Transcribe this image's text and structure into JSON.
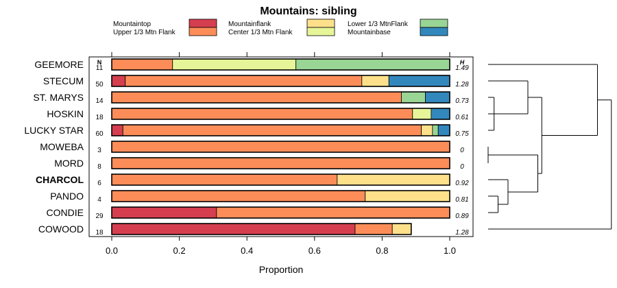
{
  "chart_data": {
    "type": "bar",
    "stacked": true,
    "orientation": "horizontal",
    "title": "Mountains: sibling",
    "xlabel": "Proportion",
    "xlim": [
      0,
      1
    ],
    "xticks": [
      "0.0",
      "0.2",
      "0.4",
      "0.6",
      "0.8",
      "1.0"
    ],
    "n_header": "N",
    "h_header": "H",
    "categories": [
      "GEEMORE",
      "STECUM",
      "ST. MARYS",
      "HOSKIN",
      "LUCKY STAR",
      "MOWEBA",
      "MORD",
      "CHARCOL",
      "PANDO",
      "CONDIE",
      "COWOOD"
    ],
    "highlight": "CHARCOL",
    "n": [
      "11",
      "50",
      "14",
      "18",
      "60",
      "3",
      "8",
      "6",
      "4",
      "29",
      "18"
    ],
    "h": [
      "1.49",
      "1.28",
      "0.73",
      "0.61",
      "0.75",
      "0",
      "0",
      "0.92",
      "0.81",
      "0.89",
      "1.28"
    ],
    "legend": [
      {
        "name": "Mountaintop",
        "color": "#d53e4f"
      },
      {
        "name": "Upper 1/3 Mtn Flank",
        "color": "#fc8d59"
      },
      {
        "name": "Mountainflank",
        "color": "#fee08b"
      },
      {
        "name": "Center 1/3 Mtn Flank",
        "color": "#e6f598"
      },
      {
        "name": "Lower 1/3 MtnFlank",
        "color": "#99d594"
      },
      {
        "name": "Mountainbase",
        "color": "#3288bd"
      }
    ],
    "series": [
      {
        "name": "Mountaintop",
        "values": [
          0,
          0.04,
          0,
          0,
          0.033,
          0,
          0,
          0,
          0,
          0.31,
          0.72
        ]
      },
      {
        "name": "Upper 1/3 Mtn Flank",
        "values": [
          0.18,
          0.7,
          0.857,
          0.89,
          0.883,
          1.0,
          1.0,
          0.667,
          0.75,
          0.69,
          0.11
        ]
      },
      {
        "name": "Mountainflank",
        "values": [
          0,
          0.08,
          0,
          0,
          0.033,
          0,
          0,
          0.333,
          0.25,
          0,
          0.056
        ]
      },
      {
        "name": "Center 1/3 Mtn Flank",
        "values": [
          0.365,
          0,
          0,
          0.055,
          0,
          0,
          0,
          0,
          0,
          0,
          0
        ]
      },
      {
        "name": "Lower 1/3 MtnFlank",
        "values": [
          0.455,
          0,
          0.071,
          0,
          0.017,
          0,
          0,
          0,
          0,
          0,
          0
        ]
      },
      {
        "name": "Mountainbase",
        "values": [
          0,
          0.18,
          0.072,
          0.055,
          0.034,
          0,
          0,
          0,
          0,
          0,
          0
        ]
      }
    ],
    "dendrogram": {
      "merges": [
        {
          "a": "ST. MARYS",
          "b": "LUCKY STAR",
          "height": 0.03
        },
        {
          "a": "m0",
          "b": "HOSKIN",
          "height": 0.06
        },
        {
          "a": "m1",
          "b": "STECUM",
          "height": 0.2
        },
        {
          "a": "MOWEBA",
          "b": "MORD",
          "height": 0.0
        },
        {
          "a": "PANDO",
          "b": "CONDIE",
          "height": 0.05
        },
        {
          "a": "CHARCOL",
          "b": "m4",
          "height": 0.1
        },
        {
          "a": "m3",
          "b": "m5",
          "height": 0.25
        },
        {
          "a": "m2",
          "b": "m6",
          "height": 0.27
        },
        {
          "a": "GEEMORE",
          "b": "m7",
          "height": 0.55
        },
        {
          "a": "m8",
          "b": "COWOOD",
          "height": 0.62
        }
      ]
    }
  }
}
